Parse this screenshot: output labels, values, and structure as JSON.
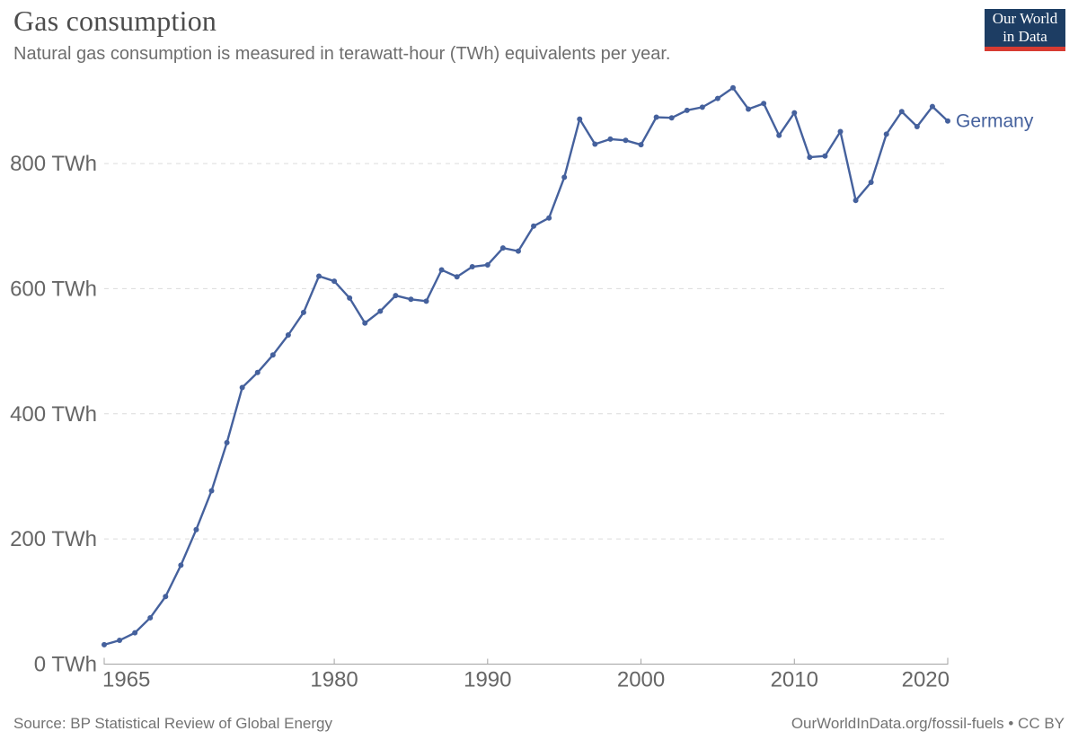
{
  "header": {
    "title": "Gas consumption",
    "subtitle": "Natural gas consumption is measured in terawatt-hour (TWh) equivalents per year.",
    "logo": {
      "line1": "Our World",
      "line2": "in Data",
      "bg_color": "#1d3d63",
      "bar_color": "#d73b32"
    }
  },
  "chart_data": {
    "type": "line",
    "title": "Gas consumption",
    "xlabel": "",
    "ylabel": "TWh",
    "xlim": [
      1965,
      2020
    ],
    "ylim": [
      0,
      930
    ],
    "grid": "horizontal-dashed",
    "legend_position": "line-end-label",
    "xticks": [
      1965,
      1980,
      1990,
      2000,
      2010,
      2020
    ],
    "xtick_labels": [
      "1965",
      "1980",
      "1990",
      "2000",
      "2010",
      "2020"
    ],
    "yticks": [
      0,
      200,
      400,
      600,
      800
    ],
    "ytick_labels": [
      "0 TWh",
      "200 TWh",
      "400 TWh",
      "600 TWh",
      "800 TWh"
    ],
    "series": [
      {
        "name": "Germany",
        "color": "#45619d",
        "x": [
          1965,
          1966,
          1967,
          1968,
          1969,
          1970,
          1971,
          1972,
          1973,
          1974,
          1975,
          1976,
          1977,
          1978,
          1979,
          1980,
          1981,
          1982,
          1983,
          1984,
          1985,
          1986,
          1987,
          1988,
          1989,
          1990,
          1991,
          1992,
          1993,
          1994,
          1995,
          1996,
          1997,
          1998,
          1999,
          2000,
          2001,
          2002,
          2003,
          2004,
          2005,
          2006,
          2007,
          2008,
          2009,
          2010,
          2011,
          2012,
          2013,
          2014,
          2015,
          2016,
          2017,
          2018,
          2019,
          2020
        ],
        "values": [
          31,
          38,
          50,
          74,
          108,
          158,
          215,
          277,
          354,
          442,
          466,
          494,
          526,
          562,
          620,
          612,
          585,
          545,
          564,
          589,
          583,
          580,
          630,
          619,
          635,
          638,
          665,
          660,
          700,
          713,
          778,
          871,
          831,
          839,
          837,
          830,
          874,
          873,
          885,
          890,
          904,
          921,
          887,
          896,
          845,
          881,
          810,
          812,
          851,
          741,
          770,
          847,
          883,
          859,
          891,
          868
        ]
      }
    ]
  },
  "footer": {
    "source": "Source: BP Statistical Review of Global Energy",
    "attribution": "OurWorldInData.org/fossil-fuels • CC BY"
  }
}
